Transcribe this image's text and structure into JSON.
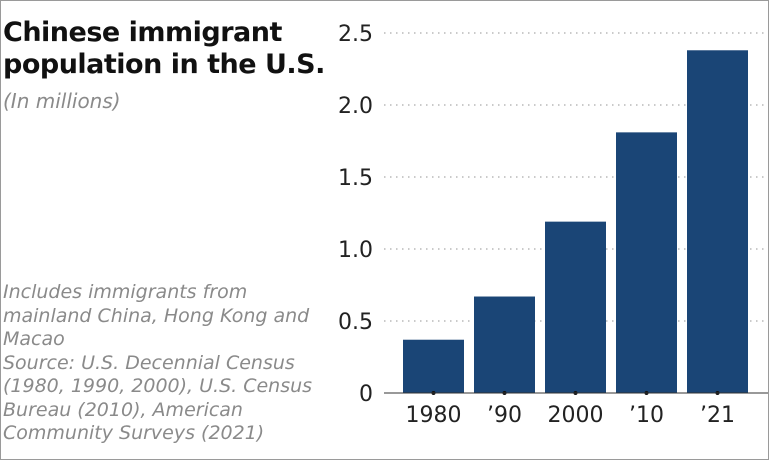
{
  "chart_data": {
    "type": "bar",
    "title": "Chinese immigrant population in the U.S.",
    "subtitle": "(In millions)",
    "categories": [
      "1980",
      "’90",
      "2000",
      "’10",
      "’21"
    ],
    "values": [
      0.37,
      0.67,
      1.19,
      1.81,
      2.38
    ],
    "ylim": [
      0,
      2.5
    ],
    "yticks": [
      "0",
      "0.5",
      "1.0",
      "1.5",
      "2.0",
      "2.5"
    ],
    "grid": "horizontal dotted",
    "bar_color": "#1a4576",
    "note": "Includes immigrants from mainland China, Hong Kong and Macao",
    "source": "Source: U.S. Decennial Census (1980, 1990, 2000), U.S. Census Bureau (2010), American Community Surveys (2021)"
  }
}
